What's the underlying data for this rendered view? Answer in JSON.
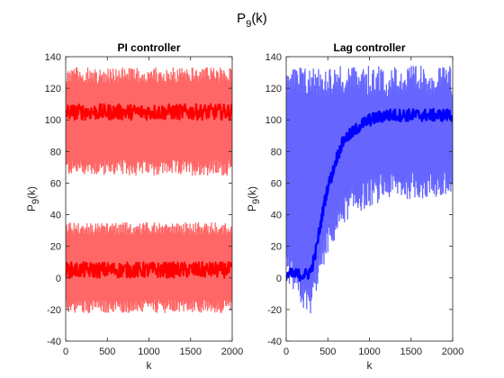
{
  "figure": {
    "title_main": "P",
    "title_sub": "9",
    "title_tail": "(k)"
  },
  "chart_data": [
    {
      "type": "line",
      "title": "PI controller",
      "xlabel": "k",
      "ylabel_main": "P",
      "ylabel_sub": "9",
      "ylabel_tail": "(k)",
      "xlim": [
        0,
        2000
      ],
      "ylim": [
        -40,
        140
      ],
      "xticks": [
        0,
        500,
        1000,
        1500,
        2000
      ],
      "yticks": [
        -40,
        -20,
        0,
        20,
        40,
        60,
        80,
        100,
        120,
        140
      ],
      "grid": false,
      "series": [
        {
          "color": "#ff6666",
          "style": "dense oscillation",
          "bands": [
            {
              "x_start": 0,
              "x_end": 2000,
              "y_low": 65,
              "y_high": 133
            },
            {
              "x_start": 0,
              "x_end": 2000,
              "y_low": -22,
              "y_high": 35
            }
          ]
        },
        {
          "color": "#ff0000",
          "style": "thick line",
          "bands": [
            {
              "x_start": 0,
              "x_end": 2000,
              "y_low": 100,
              "y_high": 110
            },
            {
              "x_start": 0,
              "x_end": 2000,
              "y_low": 0,
              "y_high": 10
            }
          ]
        }
      ]
    },
    {
      "type": "line",
      "title": "Lag controller",
      "xlabel": "k",
      "ylabel_main": "P",
      "ylabel_sub": "9",
      "ylabel_tail": "(k)",
      "xlim": [
        0,
        2000
      ],
      "ylim": [
        -40,
        140
      ],
      "xticks": [
        0,
        500,
        1000,
        1500,
        2000
      ],
      "yticks": [
        -40,
        -20,
        0,
        20,
        40,
        60,
        80,
        100,
        120,
        140
      ],
      "grid": false,
      "series": [
        {
          "color": "#6666ff",
          "style": "dense oscillation",
          "envelope_upper": [
            [
              0,
              134
            ],
            [
              2000,
              134
            ]
          ],
          "envelope_lower": [
            [
              0,
              0
            ],
            [
              200,
              -20
            ],
            [
              300,
              -23
            ],
            [
              400,
              0
            ],
            [
              500,
              15
            ],
            [
              600,
              25
            ],
            [
              700,
              35
            ],
            [
              800,
              40
            ],
            [
              1000,
              45
            ],
            [
              1200,
              50
            ],
            [
              2000,
              50
            ]
          ]
        },
        {
          "color": "#0000ff",
          "style": "thick line",
          "points": [
            [
              0,
              2
            ],
            [
              250,
              2
            ],
            [
              300,
              5
            ],
            [
              350,
              15
            ],
            [
              400,
              30
            ],
            [
              450,
              45
            ],
            [
              500,
              58
            ],
            [
              550,
              65
            ],
            [
              600,
              75
            ],
            [
              650,
              82
            ],
            [
              700,
              88
            ],
            [
              800,
              92
            ],
            [
              900,
              97
            ],
            [
              1000,
              100
            ],
            [
              1200,
              103
            ],
            [
              1500,
              103
            ],
            [
              2000,
              103
            ]
          ]
        }
      ]
    }
  ]
}
